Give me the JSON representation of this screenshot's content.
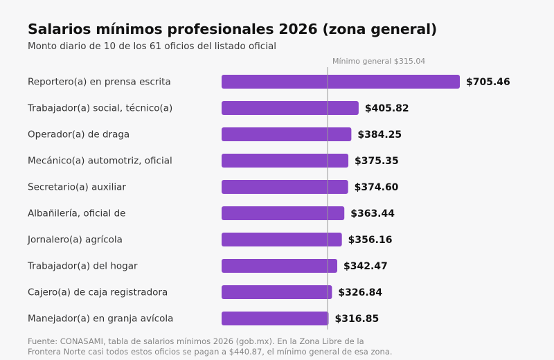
{
  "header": {
    "title": "Salarios mínimos profesionales 2026 (zona general)",
    "subtitle": "Monto diario de 10 de los 61 oficios del listado oficial"
  },
  "chart_data": {
    "type": "bar",
    "orientation": "horizontal",
    "title": "Salarios mínimos profesionales 2026 (zona general)",
    "subtitle": "Monto diario de 10 de los 61 oficios del listado oficial",
    "categories": [
      "Reportero(a) en prensa escrita",
      "Trabajador(a) social, técnico(a)",
      "Operador(a) de draga",
      "Mecánico(a) automotriz, oficial",
      "Secretario(a) auxiliar",
      "Albañilería, oficial de",
      "Jornalero(a) agrícola",
      "Trabajador(a) del hogar",
      "Cajero(a) de caja registradora",
      "Manejador(a) en granja avícola"
    ],
    "values": [
      705.46,
      405.82,
      384.25,
      375.35,
      374.6,
      363.44,
      356.16,
      342.47,
      326.84,
      316.85
    ],
    "value_labels": [
      "$705.46",
      "$405.82",
      "$384.25",
      "$375.35",
      "$374.60",
      "$363.44",
      "$356.16",
      "$342.47",
      "$326.84",
      "$316.85"
    ],
    "reference_line": {
      "value": 315.04,
      "label": "Mínimo general $315.04"
    },
    "xlim": [
      0,
      705.46
    ],
    "bar_color": "#8a45c8",
    "reference_color": "#9a9a9a",
    "grid": false,
    "legend": "none"
  },
  "footnote": {
    "line1": "Fuente: CONASAMI, tabla de salarios mínimos 2026 (gob.mx). En la Zona Libre de la",
    "line2": "Frontera Norte casi todos estos oficios se pagan a $440.87, el mínimo general de esa zona."
  }
}
